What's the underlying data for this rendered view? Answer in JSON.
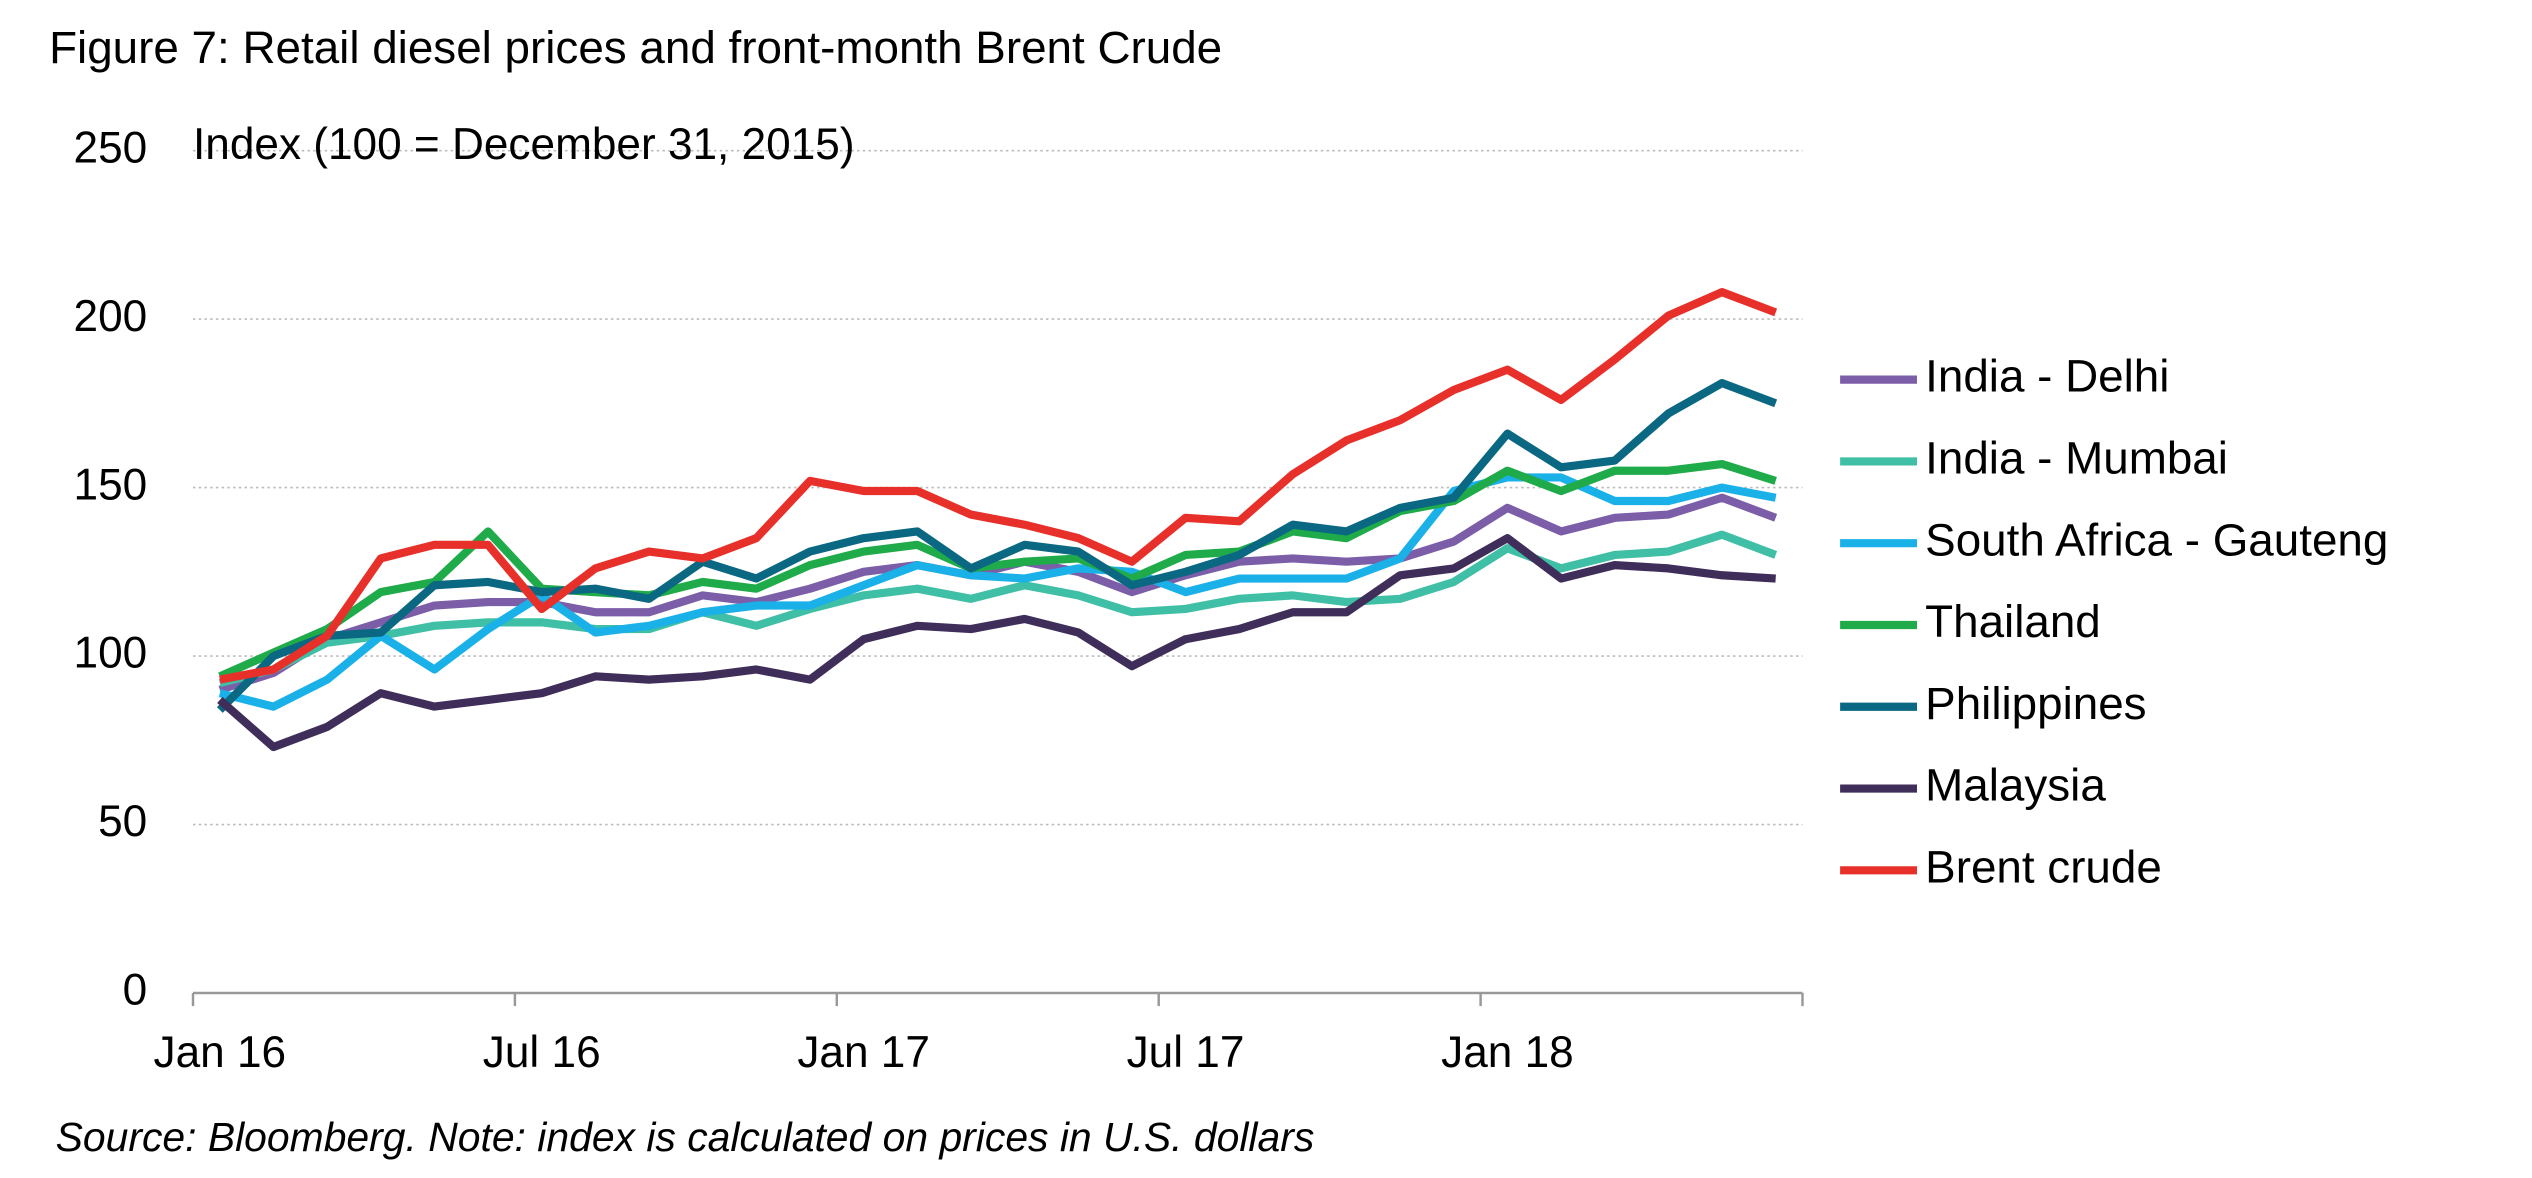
{
  "chart_data": {
    "type": "line",
    "title": "Figure 7: Retail diesel prices and front-month Brent Crude",
    "y_label": "Index (100 = December 31, 2015)",
    "source": "Source: Bloomberg. Note: index is calculated on prices in U.S. dollars",
    "categories": [
      "Jan 16",
      null,
      null,
      null,
      null,
      null,
      "Jul 16",
      null,
      null,
      null,
      null,
      null,
      "Jan 17",
      null,
      null,
      null,
      null,
      null,
      "Jul 17",
      null,
      null,
      null,
      null,
      null,
      "Jan 18",
      null,
      null,
      null,
      null,
      null
    ],
    "ylim": [
      0,
      250
    ],
    "yticks": [
      0,
      50,
      100,
      150,
      200,
      250
    ],
    "grid": true,
    "legend": "right",
    "series": [
      {
        "name": "India - Delhi",
        "color": "#7b5ea7",
        "values": [
          90,
          95,
          105,
          110,
          115,
          116,
          116,
          113,
          113,
          118,
          116,
          120,
          125,
          127,
          124,
          128,
          125,
          119,
          124,
          128,
          129,
          128,
          129,
          134,
          144,
          137,
          141,
          142,
          147,
          141
        ]
      },
      {
        "name": "India - Mumbai",
        "color": "#3fbfa5",
        "values": [
          92,
          96,
          104,
          106,
          109,
          110,
          110,
          108,
          108,
          113,
          109,
          114,
          118,
          120,
          117,
          121,
          118,
          113,
          114,
          117,
          118,
          116,
          117,
          122,
          132,
          126,
          130,
          131,
          136,
          130
        ]
      },
      {
        "name": "South Africa - Gauteng",
        "color": "#1ab0e8",
        "values": [
          89,
          85,
          93,
          106,
          96,
          108,
          118,
          107,
          109,
          113,
          115,
          115,
          121,
          127,
          124,
          123,
          126,
          125,
          119,
          123,
          123,
          123,
          129,
          149,
          153,
          153,
          146,
          146,
          150,
          147
        ]
      },
      {
        "name": "Thailand",
        "color": "#1fab4a",
        "values": [
          94,
          101,
          108,
          119,
          122,
          137,
          120,
          119,
          118,
          122,
          120,
          127,
          131,
          133,
          126,
          128,
          129,
          123,
          130,
          131,
          137,
          135,
          143,
          146,
          155,
          149,
          155,
          155,
          157,
          152
        ]
      },
      {
        "name": "Philippines",
        "color": "#0b6882",
        "values": [
          84,
          100,
          106,
          107,
          121,
          122,
          119,
          120,
          117,
          128,
          123,
          131,
          135,
          137,
          126,
          133,
          131,
          121,
          125,
          130,
          139,
          137,
          144,
          147,
          166,
          156,
          158,
          172,
          181,
          175
        ]
      },
      {
        "name": "Malaysia",
        "color": "#3f2d5a",
        "values": [
          87,
          73,
          79,
          89,
          85,
          87,
          89,
          94,
          93,
          94,
          96,
          93,
          105,
          109,
          108,
          111,
          107,
          97,
          105,
          108,
          113,
          113,
          124,
          126,
          135,
          123,
          127,
          126,
          124,
          123
        ]
      },
      {
        "name": "Brent crude",
        "color": "#e8302a",
        "values": [
          93,
          96,
          106,
          129,
          133,
          133,
          114,
          126,
          131,
          129,
          135,
          152,
          149,
          149,
          142,
          139,
          135,
          128,
          141,
          140,
          154,
          164,
          170,
          179,
          185,
          176,
          188,
          201,
          208,
          202
        ]
      }
    ]
  }
}
